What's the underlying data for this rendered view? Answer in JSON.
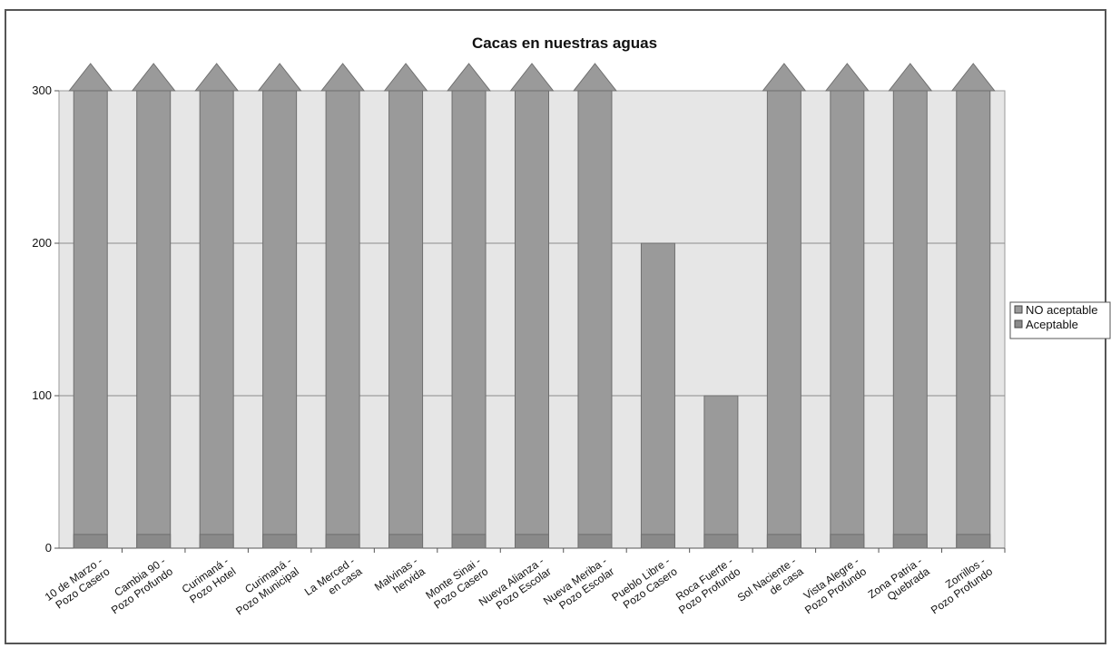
{
  "chart_data": {
    "type": "bar",
    "title": "Cacas en nuestras aguas",
    "xlabel": "",
    "ylabel": "",
    "ylim": [
      0,
      300
    ],
    "yticks": [
      "0",
      "100",
      "200",
      "300"
    ],
    "overflow_cap": 300,
    "grid": true,
    "legend_position": "right",
    "categories": [
      [
        "10 de Marzo -",
        "Pozo Casero"
      ],
      [
        "Cambia 90 -",
        "Pozo Profundo"
      ],
      [
        "Curimaná -",
        "Pozo Hotel"
      ],
      [
        "Curimaná -",
        "Pozo Municipal"
      ],
      [
        "La Merced -",
        "en casa"
      ],
      [
        "Malvinas -",
        "hervida"
      ],
      [
        "Monte Sinai -",
        "Pozo Casero"
      ],
      [
        "Nueva Alianza -",
        "Pozo Escolar"
      ],
      [
        "Nueva Meriba -",
        "Pozo Escolar"
      ],
      [
        "Pueblo Libre -",
        "Pozo Casero"
      ],
      [
        "Roca Fuerte -",
        "Pozo Profundo"
      ],
      [
        "Sol Naciente -",
        "de casa"
      ],
      [
        "Vista Alegre -",
        "Pozo Profundo"
      ],
      [
        "Zona Patria -",
        "Quebrada"
      ],
      [
        "Zorrillos -",
        "Pozo Profundo"
      ]
    ],
    "series": [
      {
        "name": "NO aceptable",
        "color": "#9a9a9a",
        "values": [
          320,
          320,
          320,
          320,
          320,
          320,
          320,
          320,
          320,
          200,
          100,
          320,
          320,
          320,
          320
        ]
      },
      {
        "name": "Aceptable",
        "color": "#8a8a8a",
        "values": [
          9,
          9,
          9,
          9,
          9,
          9,
          9,
          9,
          9,
          9,
          9,
          9,
          9,
          9,
          9
        ]
      }
    ],
    "colors": {
      "plot_bg": "#e6e6e6",
      "gridline": "#8c8c8c",
      "bar_border": "#6e6e6e"
    }
  }
}
